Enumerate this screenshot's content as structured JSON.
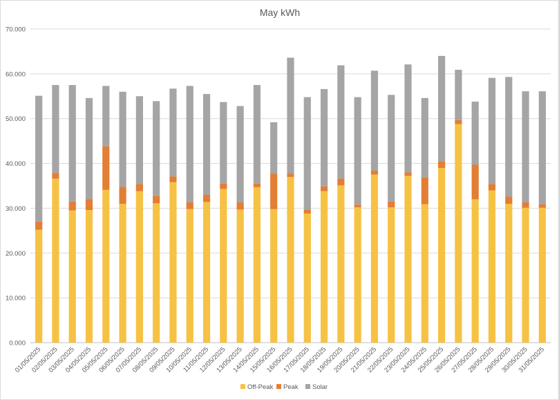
{
  "chart_data": {
    "type": "bar",
    "stacked": true,
    "title": "May kWh",
    "xlabel": "",
    "ylabel": "",
    "ylim": [
      0,
      70
    ],
    "y_ticks": [
      0,
      10,
      20,
      30,
      40,
      50,
      60,
      70
    ],
    "y_tick_labels": [
      "0.000",
      "10.000",
      "20.000",
      "30.000",
      "40.000",
      "50.000",
      "60.000",
      "70.000"
    ],
    "grid": true,
    "legend_position": "bottom",
    "categories": [
      "01/05/2025",
      "02/05/2025",
      "03/05/2025",
      "04/05/2025",
      "05/05/2025",
      "06/05/2025",
      "07/05/2025",
      "08/05/2025",
      "09/05/2025",
      "10/05/2025",
      "11/05/2025",
      "12/05/2025",
      "13/05/2025",
      "14/05/2025",
      "15/05/2025",
      "16/05/2025",
      "17/05/2025",
      "18/05/2025",
      "19/05/2025",
      "20/05/2025",
      "21/05/2025",
      "22/05/2025",
      "23/05/2025",
      "24/05/2025",
      "25/05/2025",
      "26/05/2025",
      "27/05/2025",
      "28/05/2025",
      "29/05/2025",
      "30/05/2025",
      "31/05/2025"
    ],
    "series": [
      {
        "name": "Off-Peak",
        "color": "#f6c244",
        "values": [
          25.2,
          36.6,
          29.5,
          29.6,
          34.1,
          31.0,
          33.8,
          31.1,
          35.8,
          29.8,
          31.4,
          34.3,
          29.7,
          34.7,
          29.8,
          37.0,
          28.8,
          33.8,
          35.1,
          30.2,
          37.5,
          30.2,
          37.2,
          30.9,
          39.0,
          48.8,
          32.0,
          34.0,
          31.0,
          30.1,
          30.1
        ]
      },
      {
        "name": "Peak",
        "color": "#e37e35",
        "values": [
          1.8,
          1.3,
          2.0,
          2.4,
          9.7,
          3.8,
          1.6,
          1.7,
          1.3,
          1.5,
          1.6,
          1.2,
          1.6,
          0.8,
          7.9,
          0.7,
          0.9,
          1.1,
          1.5,
          0.6,
          0.9,
          1.3,
          0.8,
          6.0,
          1.5,
          0.9,
          7.7,
          1.4,
          1.6,
          1.2,
          0.8
        ]
      },
      {
        "name": "Solar",
        "color": "#a5a5a5",
        "values": [
          28.1,
          19.6,
          26.0,
          22.6,
          13.5,
          21.2,
          19.6,
          21.1,
          19.6,
          26.0,
          22.5,
          18.2,
          21.5,
          22.0,
          11.5,
          25.9,
          25.1,
          21.7,
          25.3,
          24.0,
          22.3,
          23.8,
          24.1,
          17.7,
          23.5,
          11.2,
          14.1,
          23.7,
          26.7,
          24.8,
          25.2
        ]
      }
    ]
  }
}
